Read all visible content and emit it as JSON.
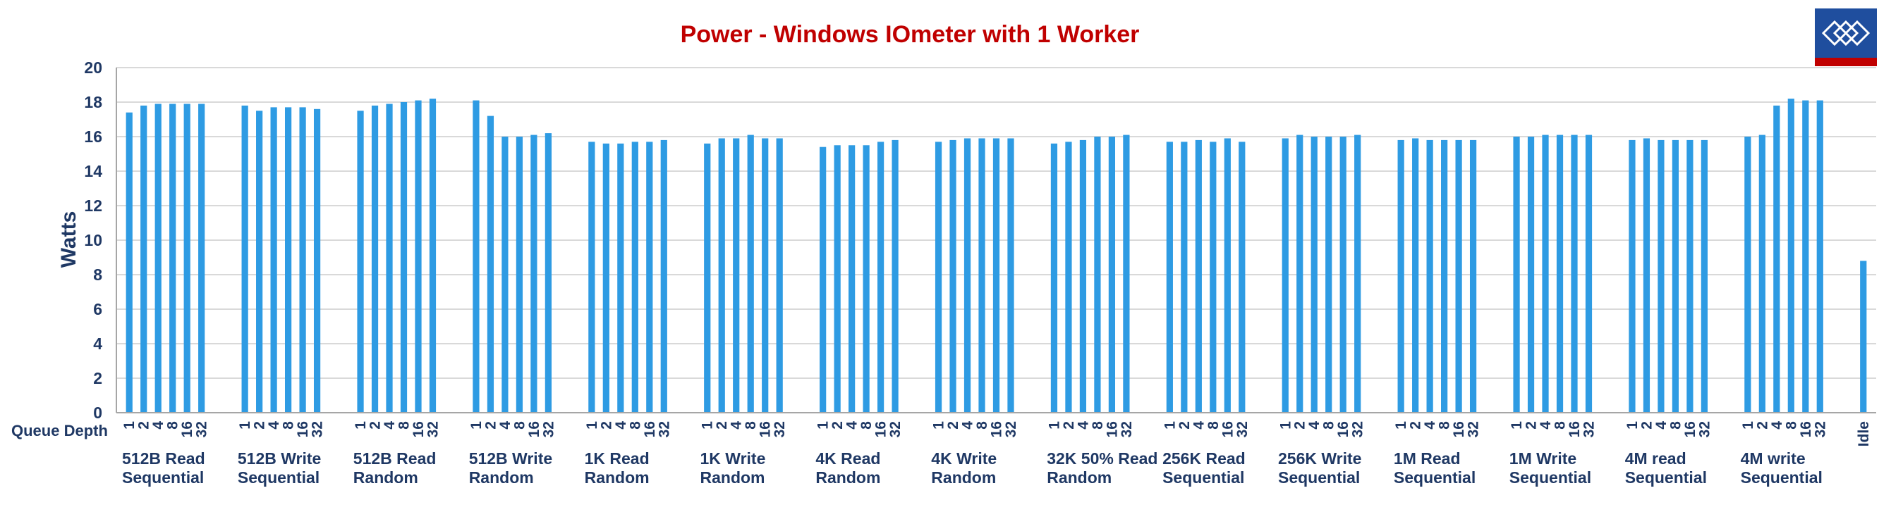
{
  "chart_data": {
    "type": "bar",
    "title": "Power - Windows IOmeter with 1 Worker",
    "ylabel": "Watts",
    "xlabel": "Queue Depth",
    "ylim": [
      0,
      20
    ],
    "yticks": [
      "0",
      "2",
      "4",
      "6",
      "8",
      "10",
      "12",
      "14",
      "16",
      "18",
      "20"
    ],
    "grid": true,
    "legend": "none",
    "colors": {
      "bar": "#2e9be3",
      "title": "#c00000",
      "axis_text": "#1f3864",
      "grid": "#d9d9d9",
      "logo_bg": "#1f4e9e",
      "logo_bar": "#c00000"
    },
    "groups": [
      {
        "label": [
          "512B Read",
          "Sequential"
        ],
        "queue_depths": [
          "1",
          "2",
          "4",
          "8",
          "16",
          "32"
        ],
        "values": [
          17.4,
          17.8,
          17.9,
          17.9,
          17.9,
          17.9
        ]
      },
      {
        "label": [
          "512B Write",
          "Sequential"
        ],
        "queue_depths": [
          "1",
          "2",
          "4",
          "8",
          "16",
          "32"
        ],
        "values": [
          17.8,
          17.5,
          17.7,
          17.7,
          17.7,
          17.6
        ]
      },
      {
        "label": [
          "512B Read",
          "Random"
        ],
        "queue_depths": [
          "1",
          "2",
          "4",
          "8",
          "16",
          "32"
        ],
        "values": [
          17.5,
          17.8,
          17.9,
          18.0,
          18.1,
          18.2
        ]
      },
      {
        "label": [
          "512B Write",
          "Random"
        ],
        "queue_depths": [
          "1",
          "2",
          "4",
          "8",
          "16",
          "32"
        ],
        "values": [
          18.1,
          17.2,
          16.0,
          16.0,
          16.1,
          16.2
        ]
      },
      {
        "label": [
          "1K Read",
          "Random"
        ],
        "queue_depths": [
          "1",
          "2",
          "4",
          "8",
          "16",
          "32"
        ],
        "values": [
          15.7,
          15.6,
          15.6,
          15.7,
          15.7,
          15.8
        ]
      },
      {
        "label": [
          "1K Write",
          "Random"
        ],
        "queue_depths": [
          "1",
          "2",
          "4",
          "8",
          "16",
          "32"
        ],
        "values": [
          15.6,
          15.9,
          15.9,
          16.1,
          15.9,
          15.9
        ]
      },
      {
        "label": [
          "4K Read",
          "Random"
        ],
        "queue_depths": [
          "1",
          "2",
          "4",
          "8",
          "16",
          "32"
        ],
        "values": [
          15.4,
          15.5,
          15.5,
          15.5,
          15.7,
          15.8
        ]
      },
      {
        "label": [
          "4K Write",
          "Random"
        ],
        "queue_depths": [
          "1",
          "2",
          "4",
          "8",
          "16",
          "32"
        ],
        "values": [
          15.7,
          15.8,
          15.9,
          15.9,
          15.9,
          15.9
        ]
      },
      {
        "label": [
          "32K 50% Read",
          "Random"
        ],
        "queue_depths": [
          "1",
          "2",
          "4",
          "8",
          "16",
          "32"
        ],
        "values": [
          15.6,
          15.7,
          15.8,
          16.0,
          16.0,
          16.1
        ]
      },
      {
        "label": [
          "256K Read",
          "Sequential"
        ],
        "queue_depths": [
          "1",
          "2",
          "4",
          "8",
          "16",
          "32"
        ],
        "values": [
          15.7,
          15.7,
          15.8,
          15.7,
          15.9,
          15.7
        ]
      },
      {
        "label": [
          "256K Write",
          "Sequential"
        ],
        "queue_depths": [
          "1",
          "2",
          "4",
          "8",
          "16",
          "32"
        ],
        "values": [
          15.9,
          16.1,
          16.0,
          16.0,
          16.0,
          16.1
        ]
      },
      {
        "label": [
          "1M Read",
          "Sequential"
        ],
        "queue_depths": [
          "1",
          "2",
          "4",
          "8",
          "16",
          "32"
        ],
        "values": [
          15.8,
          15.9,
          15.8,
          15.8,
          15.8,
          15.8
        ]
      },
      {
        "label": [
          "1M Write",
          "Sequential"
        ],
        "queue_depths": [
          "1",
          "2",
          "4",
          "8",
          "16",
          "32"
        ],
        "values": [
          16.0,
          16.0,
          16.1,
          16.1,
          16.1,
          16.1
        ]
      },
      {
        "label": [
          "4M read",
          "Sequential"
        ],
        "queue_depths": [
          "1",
          "2",
          "4",
          "8",
          "16",
          "32"
        ],
        "values": [
          15.8,
          15.9,
          15.8,
          15.8,
          15.8,
          15.8
        ]
      },
      {
        "label": [
          "4M write",
          "Sequential"
        ],
        "queue_depths": [
          "1",
          "2",
          "4",
          "8",
          "16",
          "32"
        ],
        "values": [
          16.0,
          16.1,
          17.8,
          18.2,
          18.1,
          18.1
        ]
      },
      {
        "label": [
          "",
          ""
        ],
        "queue_depths": [
          "Idle"
        ],
        "values": [
          8.8
        ]
      }
    ]
  }
}
